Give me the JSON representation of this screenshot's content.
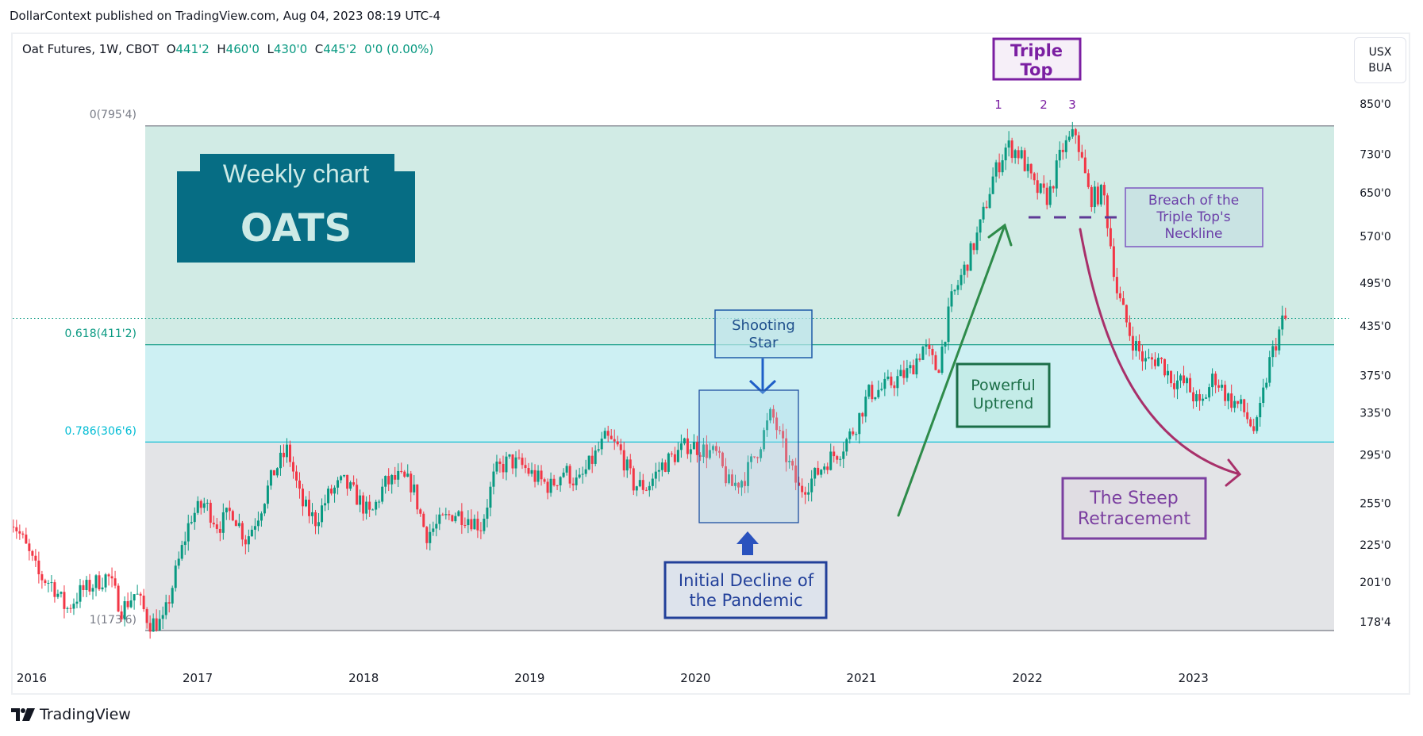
{
  "header": {
    "published": "DollarContext published on TradingView.com, Aug 04, 2023 08:19 UTC-4"
  },
  "legend": {
    "symbol": "Oat Futures, 1W, CBOT",
    "open_label": "O",
    "open": "441'2",
    "high_label": "H",
    "high": "460'0",
    "low_label": "L",
    "low": "430'0",
    "close_label": "C",
    "close": "445'2",
    "change": "0'0 (0.00%)"
  },
  "unit_button": {
    "line1": "USX",
    "line2": "BUA"
  },
  "footer": {
    "brand": "TradingView",
    "logo_icon": "tradingview-logo-icon"
  },
  "colors": {
    "up": "#089981",
    "down": "#f23645",
    "fib_upper": "#d1ebe5",
    "fib_mid": "#cdf0f3",
    "fib_lower": "#e3e4e7"
  },
  "fib_levels": [
    {
      "label": "0(795'4)",
      "price": 795.5,
      "color": "#787b86"
    },
    {
      "label": "0.618(411'2)",
      "price": 411.25,
      "color": "#089981"
    },
    {
      "label": "0.786(306'6)",
      "price": 306.75,
      "color": "#00bcd4"
    },
    {
      "label": "1(173'6)",
      "price": 173.75,
      "color": "#787b86"
    }
  ],
  "annotations": {
    "weekly_box": {
      "line1": "Weekly chart",
      "line2": "OATS"
    },
    "triple_top": {
      "line1": "Triple",
      "line2": "Top"
    },
    "peaks": [
      "1",
      "2",
      "3"
    ],
    "breach": {
      "line1": "Breach of the",
      "line2": "Triple Top's",
      "line3": "Neckline"
    },
    "shooting_star": {
      "line1": "Shooting",
      "line2": "Star"
    },
    "pandemic": {
      "line1": "Initial Decline of",
      "line2": "the Pandemic"
    },
    "uptrend": {
      "line1": "Powerful",
      "line2": "Uptrend"
    },
    "retracement": {
      "line1": "The Steep",
      "line2": "Retracement"
    }
  },
  "chart_data": {
    "type": "candlestick",
    "timeframe": "1W",
    "y_scale": "log",
    "ylim": [
      165,
      880
    ],
    "y_ticks": [
      "850'0",
      "730'0",
      "650'0",
      "570'0",
      "495'0",
      "435'0",
      "375'0",
      "335'0",
      "295'0",
      "255'0",
      "225'0",
      "201'0",
      "178'4"
    ],
    "y_tick_values": [
      850,
      730,
      650,
      570,
      495,
      435,
      375,
      335,
      295,
      255,
      225,
      201,
      178.5
    ],
    "x_ticks": [
      "2016",
      "2017",
      "2018",
      "2019",
      "2020",
      "2021",
      "2022",
      "2023"
    ],
    "last_price": 445.25,
    "approx_monthly_closes": [
      [
        "2015-11",
        245
      ],
      [
        "2015-12",
        225
      ],
      [
        "2016-01",
        205
      ],
      [
        "2016-02",
        200
      ],
      [
        "2016-03",
        185
      ],
      [
        "2016-04",
        195
      ],
      [
        "2016-05",
        200
      ],
      [
        "2016-06",
        205
      ],
      [
        "2016-07",
        185
      ],
      [
        "2016-08",
        195
      ],
      [
        "2016-09",
        178
      ],
      [
        "2016-10",
        178
      ],
      [
        "2016-11",
        210
      ],
      [
        "2016-12",
        245
      ],
      [
        "2017-01",
        255
      ],
      [
        "2017-02",
        238
      ],
      [
        "2017-03",
        250
      ],
      [
        "2017-04",
        228
      ],
      [
        "2017-05",
        250
      ],
      [
        "2017-06",
        280
      ],
      [
        "2017-07",
        300
      ],
      [
        "2017-08",
        255
      ],
      [
        "2017-09",
        242
      ],
      [
        "2017-10",
        262
      ],
      [
        "2017-11",
        272
      ],
      [
        "2017-12",
        260
      ],
      [
        "2018-01",
        245
      ],
      [
        "2018-02",
        270
      ],
      [
        "2018-03",
        275
      ],
      [
        "2018-04",
        270
      ],
      [
        "2018-05",
        232
      ],
      [
        "2018-06",
        240
      ],
      [
        "2018-07",
        248
      ],
      [
        "2018-08",
        245
      ],
      [
        "2018-09",
        238
      ],
      [
        "2018-10",
        280
      ],
      [
        "2018-11",
        290
      ],
      [
        "2018-12",
        285
      ],
      [
        "2019-01",
        275
      ],
      [
        "2019-02",
        268
      ],
      [
        "2019-03",
        282
      ],
      [
        "2019-04",
        270
      ],
      [
        "2019-05",
        290
      ],
      [
        "2019-06",
        310
      ],
      [
        "2019-07",
        300
      ],
      [
        "2019-08",
        270
      ],
      [
        "2019-09",
        268
      ],
      [
        "2019-10",
        285
      ],
      [
        "2019-11",
        295
      ],
      [
        "2019-12",
        305
      ],
      [
        "2020-01",
        300
      ],
      [
        "2020-02",
        295
      ],
      [
        "2020-03",
        268
      ],
      [
        "2020-04",
        275
      ],
      [
        "2020-05",
        300
      ],
      [
        "2020-06",
        335
      ],
      [
        "2020-07",
        295
      ],
      [
        "2020-08",
        265
      ],
      [
        "2020-09",
        275
      ],
      [
        "2020-10",
        290
      ],
      [
        "2020-11",
        300
      ],
      [
        "2020-12",
        320
      ],
      [
        "2021-01",
        355
      ],
      [
        "2021-02",
        360
      ],
      [
        "2021-03",
        370
      ],
      [
        "2021-04",
        380
      ],
      [
        "2021-05",
        410
      ],
      [
        "2021-06",
        380
      ],
      [
        "2021-07",
        470
      ],
      [
        "2021-08",
        520
      ],
      [
        "2021-09",
        580
      ],
      [
        "2021-10",
        680
      ],
      [
        "2021-11",
        750
      ],
      [
        "2021-12",
        730
      ],
      [
        "2022-01",
        660
      ],
      [
        "2022-02",
        640
      ],
      [
        "2022-03",
        740
      ],
      [
        "2022-04",
        780
      ],
      [
        "2022-05",
        640
      ],
      [
        "2022-06",
        650
      ],
      [
        "2022-07",
        480
      ],
      [
        "2022-08",
        420
      ],
      [
        "2022-09",
        390
      ],
      [
        "2022-10",
        395
      ],
      [
        "2022-11",
        370
      ],
      [
        "2022-12",
        365
      ],
      [
        "2023-01",
        340
      ],
      [
        "2023-02",
        375
      ],
      [
        "2023-03",
        350
      ],
      [
        "2023-04",
        340
      ],
      [
        "2023-05",
        315
      ],
      [
        "2023-06",
        390
      ],
      [
        "2023-07",
        445
      ]
    ]
  }
}
